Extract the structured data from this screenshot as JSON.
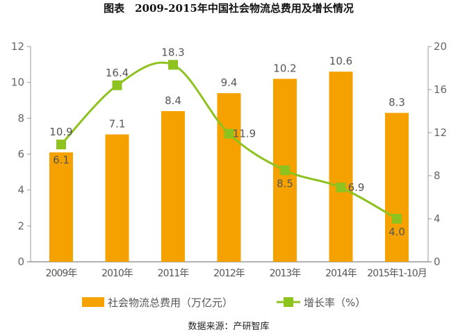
{
  "chart_data": {
    "type": "bar+line",
    "title": "图表　2009-2015年中国社会物流总费用及增长情况",
    "categories": [
      "2009年",
      "2010年",
      "2011年",
      "2012年",
      "2013年",
      "2014年",
      "2015年1-10月"
    ],
    "series": [
      {
        "name": "社会物流总费用（万亿元）",
        "type": "bar",
        "axis": "left",
        "color": "#F5A200",
        "values": [
          6.1,
          7.1,
          8.4,
          9.4,
          10.2,
          10.6,
          8.3
        ]
      },
      {
        "name": "增长率（%）",
        "type": "line",
        "axis": "right",
        "color": "#8DC21F",
        "values": [
          10.9,
          16.4,
          18.3,
          11.9,
          8.5,
          6.9,
          4.0
        ]
      }
    ],
    "left_axis": {
      "ylim": [
        0,
        12
      ],
      "ticks": [
        "0",
        "2",
        "4",
        "6",
        "8",
        "10",
        "12"
      ]
    },
    "right_axis": {
      "ylim": [
        0,
        20
      ],
      "ticks": [
        "0",
        "4",
        "8",
        "12",
        "16",
        "20"
      ]
    },
    "grid": false,
    "legend_placement": "bottom",
    "source": "数据来源：产研智库"
  }
}
